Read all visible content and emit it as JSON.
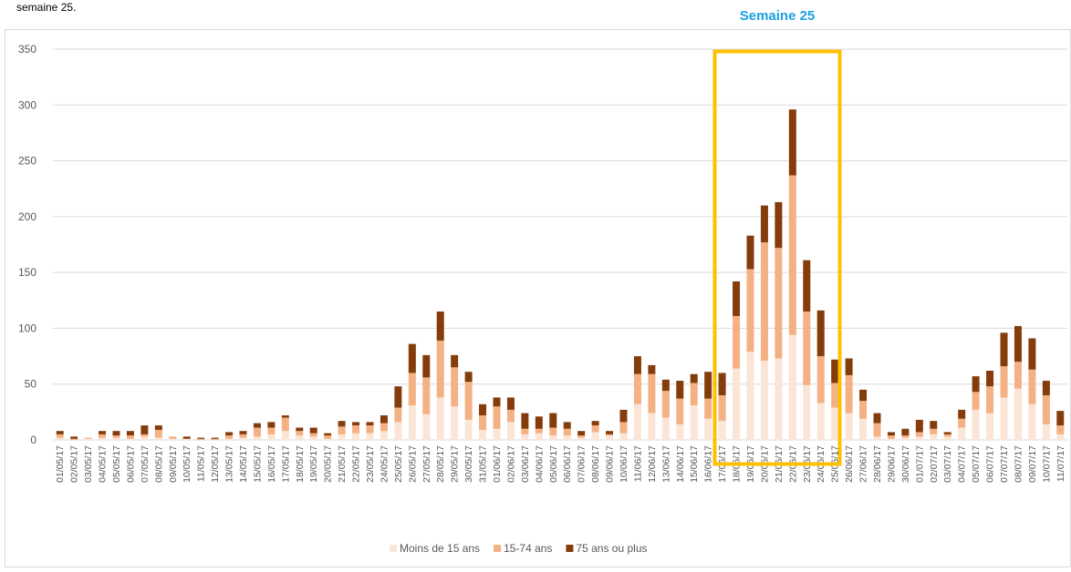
{
  "chart_data": {
    "type": "stacked_bar",
    "note_text": "semaine 25.",
    "annotation": "Semaine 25",
    "categories": [
      "01/05/17",
      "02/05/17",
      "03/05/17",
      "04/05/17",
      "05/05/17",
      "06/05/17",
      "07/05/17",
      "08/05/17",
      "09/05/17",
      "10/05/17",
      "11/05/17",
      "12/05/17",
      "13/05/17",
      "14/05/17",
      "15/05/17",
      "16/05/17",
      "17/05/17",
      "18/05/17",
      "19/05/17",
      "20/05/17",
      "21/05/17",
      "22/05/17",
      "23/05/17",
      "24/05/17",
      "25/05/17",
      "26/05/17",
      "27/05/17",
      "28/05/17",
      "29/05/17",
      "30/05/17",
      "31/05/17",
      "01/06/17",
      "02/06/17",
      "03/06/17",
      "04/06/17",
      "05/06/17",
      "06/06/17",
      "07/06/17",
      "08/06/17",
      "09/06/17",
      "10/06/17",
      "11/06/17",
      "12/06/17",
      "13/06/17",
      "14/06/17",
      "15/06/17",
      "16/06/17",
      "17/06/17",
      "18/06/17",
      "19/06/17",
      "20/06/17",
      "21/06/17",
      "22/06/17",
      "23/06/17",
      "24/06/17",
      "25/06/17",
      "26/06/17",
      "27/06/17",
      "28/06/17",
      "29/06/17",
      "30/06/17",
      "01/07/17",
      "02/07/17",
      "03/07/17",
      "04/07/17",
      "05/07/17",
      "06/07/17",
      "07/07/17",
      "08/07/17",
      "09/07/17",
      "10/07/17",
      "11/07/17"
    ],
    "series": [
      {
        "name": "Moins de 15 ans",
        "color": "#fbe5d6",
        "values": [
          2,
          0,
          1,
          2,
          2,
          1,
          3,
          2,
          1,
          1,
          0,
          0,
          1,
          2,
          3,
          5,
          8,
          4,
          3,
          1,
          5,
          6,
          6,
          8,
          16,
          31,
          23,
          38,
          30,
          18,
          9,
          10,
          16,
          5,
          6,
          4,
          4,
          2,
          7,
          4,
          6,
          32,
          24,
          20,
          14,
          31,
          19,
          17,
          64,
          79,
          71,
          73,
          94,
          49,
          33,
          29,
          24,
          19,
          3,
          1,
          2,
          3,
          5,
          3,
          11,
          27,
          24,
          38,
          46,
          32,
          14,
          5
        ]
      },
      {
        "name": "15-74 ans",
        "color": "#f4b183",
        "values": [
          3,
          1,
          1,
          3,
          2,
          3,
          2,
          7,
          2,
          0,
          1,
          1,
          3,
          3,
          8,
          6,
          12,
          4,
          3,
          3,
          7,
          7,
          7,
          7,
          13,
          29,
          33,
          51,
          35,
          34,
          13,
          20,
          11,
          5,
          4,
          7,
          6,
          2,
          6,
          1,
          10,
          27,
          35,
          24,
          23,
          20,
          18,
          23,
          47,
          74,
          106,
          99,
          143,
          66,
          42,
          22,
          34,
          16,
          12,
          3,
          2,
          4,
          5,
          2,
          8,
          16,
          24,
          28,
          24,
          31,
          26,
          8
        ]
      },
      {
        "name": "75 ans ou plus",
        "color": "#843c0c",
        "values": [
          3,
          2,
          0,
          3,
          4,
          4,
          8,
          4,
          0,
          2,
          1,
          1,
          3,
          3,
          4,
          5,
          2,
          3,
          5,
          2,
          5,
          3,
          3,
          7,
          19,
          26,
          20,
          26,
          11,
          9,
          10,
          8,
          11,
          14,
          11,
          13,
          6,
          4,
          4,
          3,
          11,
          16,
          8,
          10,
          16,
          8,
          24,
          20,
          31,
          30,
          33,
          41,
          59,
          46,
          41,
          21,
          15,
          10,
          9,
          3,
          6,
          11,
          7,
          2,
          8,
          14,
          14,
          30,
          32,
          28,
          13,
          13
        ]
      }
    ],
    "ylim": [
      0,
      350
    ],
    "yticks": [
      0,
      50,
      100,
      150,
      200,
      250,
      300,
      350
    ],
    "grid": true
  }
}
